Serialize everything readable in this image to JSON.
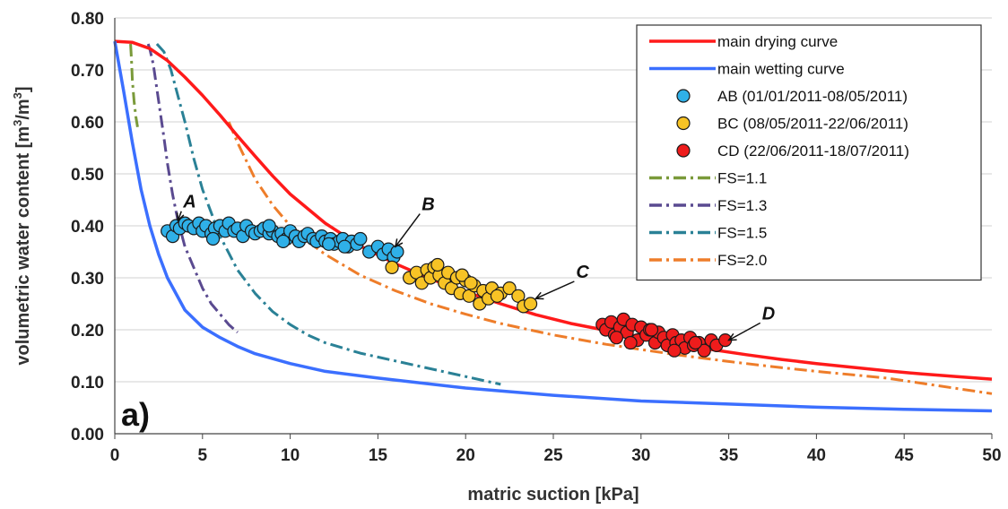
{
  "chart_data": {
    "type": "scatter",
    "xlabel": "matric suction [kPa]",
    "ylabel_parts": [
      "volumetric water content [m",
      "3",
      "/m",
      "3",
      "]"
    ],
    "xlim": [
      0,
      50
    ],
    "ylim": [
      0,
      0.8
    ],
    "x_ticks": [
      "0",
      "5",
      "10",
      "15",
      "20",
      "25",
      "30",
      "35",
      "40",
      "45",
      "50"
    ],
    "y_ticks": [
      "0.00",
      "0.10",
      "0.20",
      "0.30",
      "0.40",
      "0.50",
      "0.60",
      "0.70",
      "0.80"
    ],
    "grid": "horizontal",
    "legend_position": "top-right",
    "panel_label": "a)",
    "series": [
      {
        "name": "main drying curve",
        "kind": "line",
        "color": "#ff1a1a",
        "dash": "solid",
        "x": [
          0,
          1,
          2,
          3,
          4,
          5,
          6,
          7,
          8,
          9,
          10,
          12,
          14,
          16,
          18,
          20,
          22,
          24,
          26,
          28,
          30,
          32,
          34,
          36,
          38,
          40,
          42,
          44,
          46,
          48,
          50
        ],
        "y": [
          0.755,
          0.753,
          0.741,
          0.718,
          0.686,
          0.651,
          0.613,
          0.573,
          0.534,
          0.496,
          0.461,
          0.405,
          0.361,
          0.327,
          0.298,
          0.273,
          0.25,
          0.229,
          0.212,
          0.199,
          0.186,
          0.174,
          0.162,
          0.152,
          0.143,
          0.135,
          0.128,
          0.121,
          0.115,
          0.11,
          0.105
        ]
      },
      {
        "name": "main wetting curve",
        "kind": "line",
        "color": "#3b6fff",
        "dash": "solid",
        "x": [
          0,
          0.5,
          1,
          1.5,
          2,
          2.5,
          3,
          4,
          5,
          6,
          7,
          8,
          10,
          12,
          15,
          20,
          25,
          30,
          35,
          40,
          45,
          50
        ],
        "y": [
          0.755,
          0.66,
          0.56,
          0.47,
          0.4,
          0.345,
          0.3,
          0.238,
          0.205,
          0.185,
          0.168,
          0.154,
          0.135,
          0.12,
          0.107,
          0.088,
          0.074,
          0.063,
          0.057,
          0.051,
          0.047,
          0.044
        ]
      },
      {
        "name": "AB (01/01/2011-08/05/2011)",
        "kind": "points",
        "color": "#2fb0e8",
        "x": [
          3.0,
          3.3,
          3.5,
          3.7,
          4.0,
          4.2,
          4.5,
          4.8,
          5.0,
          5.2,
          5.5,
          5.7,
          6.0,
          6.3,
          6.5,
          6.8,
          7.0,
          7.3,
          7.5,
          7.8,
          8.0,
          8.3,
          8.5,
          8.8,
          9.0,
          9.3,
          9.5,
          9.8,
          10.0,
          10.3,
          10.5,
          10.8,
          11.0,
          11.3,
          11.5,
          11.8,
          12.0,
          12.3,
          12.5,
          12.8,
          13.0,
          13.3,
          13.5,
          13.8,
          14.0,
          14.5,
          15.0,
          15.3,
          15.6,
          15.9,
          16.1,
          5.6,
          8.8,
          9.6,
          12.2,
          13.1
        ],
        "y": [
          0.39,
          0.38,
          0.4,
          0.395,
          0.405,
          0.4,
          0.395,
          0.405,
          0.39,
          0.4,
          0.385,
          0.395,
          0.4,
          0.39,
          0.405,
          0.39,
          0.395,
          0.38,
          0.4,
          0.39,
          0.385,
          0.39,
          0.395,
          0.385,
          0.39,
          0.38,
          0.385,
          0.375,
          0.39,
          0.38,
          0.37,
          0.38,
          0.385,
          0.375,
          0.37,
          0.38,
          0.37,
          0.375,
          0.365,
          0.37,
          0.375,
          0.36,
          0.37,
          0.365,
          0.375,
          0.35,
          0.36,
          0.345,
          0.355,
          0.34,
          0.35,
          0.375,
          0.4,
          0.37,
          0.365,
          0.36
        ]
      },
      {
        "name": "BC (08/05/2011-22/06/2011)",
        "kind": "points",
        "color": "#f7c325",
        "x": [
          15.8,
          16.8,
          17.2,
          17.5,
          17.8,
          18.0,
          18.2,
          18.5,
          18.8,
          19.0,
          19.2,
          19.5,
          19.7,
          20.0,
          20.2,
          20.5,
          20.8,
          21.0,
          21.3,
          21.5,
          22.0,
          22.5,
          23.0,
          23.3,
          23.7,
          18.4,
          19.8,
          20.3,
          21.8
        ],
        "y": [
          0.32,
          0.3,
          0.31,
          0.29,
          0.315,
          0.3,
          0.32,
          0.305,
          0.29,
          0.31,
          0.28,
          0.3,
          0.27,
          0.295,
          0.265,
          0.285,
          0.25,
          0.275,
          0.26,
          0.28,
          0.27,
          0.28,
          0.265,
          0.245,
          0.25,
          0.325,
          0.305,
          0.29,
          0.265
        ]
      },
      {
        "name": "CD (22/06/2011-18/07/2011)",
        "kind": "points",
        "color": "#ee1c1c",
        "x": [
          27.8,
          28.0,
          28.3,
          28.5,
          28.8,
          29.0,
          29.2,
          29.5,
          29.8,
          30.0,
          30.3,
          30.5,
          30.8,
          31.0,
          31.3,
          31.5,
          31.8,
          32.0,
          32.3,
          32.5,
          32.8,
          33.0,
          33.3,
          33.6,
          34.0,
          34.3,
          34.8,
          28.6,
          29.4,
          30.6,
          31.9,
          33.1
        ],
        "y": [
          0.21,
          0.2,
          0.215,
          0.19,
          0.205,
          0.22,
          0.195,
          0.21,
          0.18,
          0.205,
          0.19,
          0.2,
          0.175,
          0.195,
          0.185,
          0.17,
          0.19,
          0.175,
          0.18,
          0.165,
          0.185,
          0.17,
          0.175,
          0.16,
          0.18,
          0.17,
          0.18,
          0.185,
          0.175,
          0.2,
          0.16,
          0.175
        ]
      },
      {
        "name": "FS=1.1",
        "kind": "line",
        "color": "#7a9a3a",
        "dash": "dashdot",
        "x": [
          0.9,
          0.95,
          1.0,
          1.1,
          1.2,
          1.3
        ],
        "y": [
          0.75,
          0.72,
          0.68,
          0.64,
          0.61,
          0.59
        ]
      },
      {
        "name": "FS=1.3",
        "kind": "line",
        "color": "#5a4a90",
        "dash": "dashdot",
        "x": [
          1.9,
          2.0,
          2.2,
          2.5,
          2.8,
          3.0,
          3.3,
          3.6,
          4.0,
          4.5,
          5.0,
          5.5,
          6.0,
          6.5,
          7.0
        ],
        "y": [
          0.75,
          0.74,
          0.71,
          0.64,
          0.57,
          0.52,
          0.46,
          0.41,
          0.36,
          0.32,
          0.28,
          0.25,
          0.23,
          0.21,
          0.195
        ]
      },
      {
        "name": "FS=1.5",
        "kind": "line",
        "color": "#2a8196",
        "dash": "dashdot",
        "x": [
          2.4,
          2.8,
          3.2,
          3.6,
          4.0,
          4.5,
          5.0,
          6.0,
          7.0,
          8.0,
          9.0,
          10.0,
          11.0,
          12.0,
          14.0,
          16.0,
          18.0,
          20.0,
          22.0
        ],
        "y": [
          0.75,
          0.735,
          0.7,
          0.65,
          0.6,
          0.53,
          0.47,
          0.38,
          0.315,
          0.27,
          0.235,
          0.21,
          0.19,
          0.175,
          0.155,
          0.14,
          0.125,
          0.11,
          0.095
        ]
      },
      {
        "name": "FS=2.0",
        "kind": "line",
        "color": "#ee7d2a",
        "dash": "dashdot",
        "x": [
          6.5,
          7.0,
          8.0,
          9.0,
          10.0,
          11.0,
          12.0,
          14.0,
          16.0,
          18.0,
          20.0,
          22.0,
          25.0,
          28.0,
          30.0,
          32.0,
          35.0,
          38.0,
          40.0,
          44.0,
          50.0
        ],
        "y": [
          0.6,
          0.56,
          0.49,
          0.44,
          0.4,
          0.37,
          0.345,
          0.305,
          0.275,
          0.25,
          0.23,
          0.212,
          0.19,
          0.172,
          0.162,
          0.152,
          0.139,
          0.127,
          0.12,
          0.107,
          0.077
        ]
      }
    ],
    "annotations": [
      {
        "text": "A",
        "x": 4.0,
        "y": 0.435,
        "ax": 3.6,
        "ay": 0.41
      },
      {
        "text": "B",
        "x": 17.6,
        "y": 0.43,
        "ax": 16.0,
        "ay": 0.36
      },
      {
        "text": "C",
        "x": 26.4,
        "y": 0.3,
        "ax": 24.0,
        "ay": 0.26
      },
      {
        "text": "D",
        "x": 37.0,
        "y": 0.22,
        "ax": 35.0,
        "ay": 0.18
      }
    ]
  }
}
